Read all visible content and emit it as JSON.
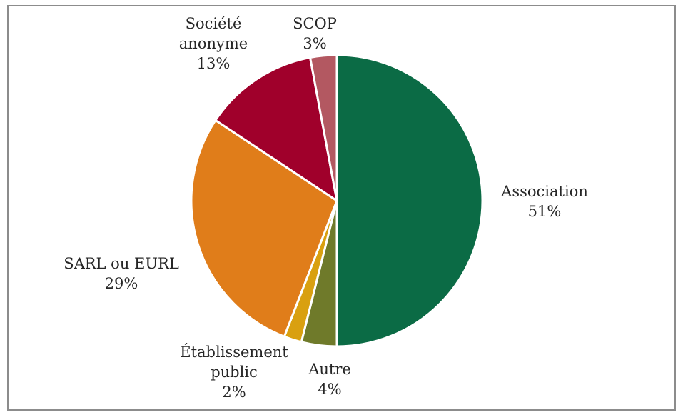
{
  "chart_data": {
    "type": "pie",
    "start_angle_deg": 0,
    "direction": "clockwise",
    "slices": [
      {
        "label": [
          "Association"
        ],
        "percent_label": "51%",
        "value": 51,
        "color": "#0b6b45"
      },
      {
        "label": [
          "Autre"
        ],
        "percent_label": "4%",
        "value": 4,
        "color": "#6f7a2a"
      },
      {
        "label": [
          "Établissement",
          "public"
        ],
        "percent_label": "2%",
        "value": 2,
        "color": "#d9a010"
      },
      {
        "label": [
          "SARL ou EURL"
        ],
        "percent_label": "29%",
        "value": 29,
        "color": "#e07d1a"
      },
      {
        "label": [
          "Société",
          "anonyme"
        ],
        "percent_label": "13%",
        "value": 13,
        "color": "#a0002b"
      },
      {
        "label": [
          "SCOP"
        ],
        "percent_label": "3%",
        "value": 3,
        "color": "#b35861"
      }
    ]
  }
}
